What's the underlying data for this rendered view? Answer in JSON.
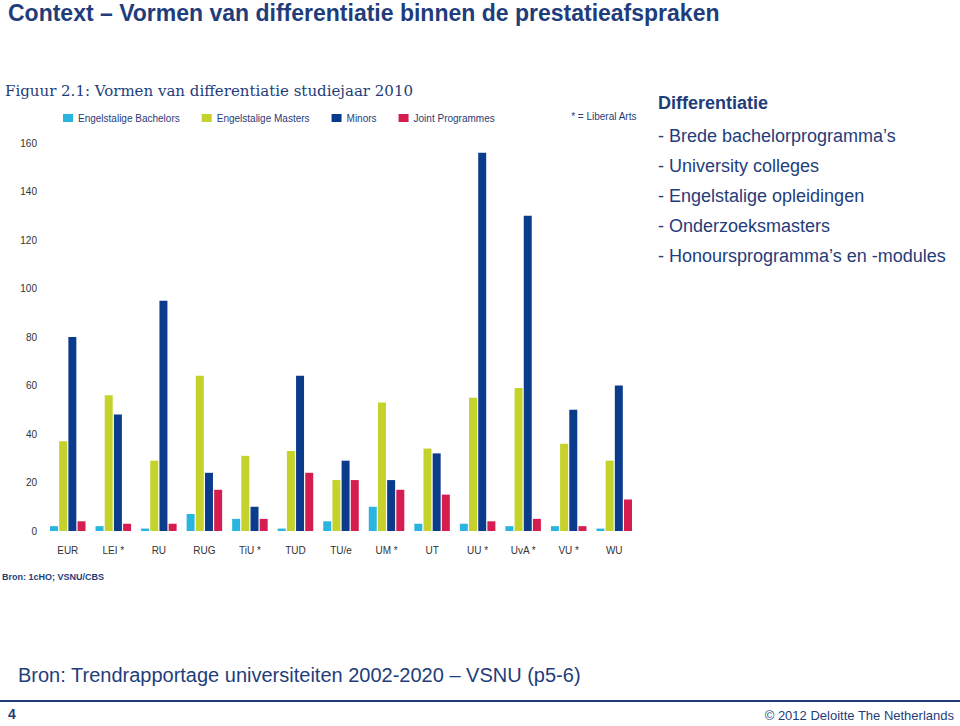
{
  "slide": {
    "title": "Context – Vormen van differentiatie binnen de prestatieafspraken",
    "heading": "Differentiatie",
    "bullets": [
      "- Brede bachelorprogramma’s",
      "- University colleges",
      "- Engelstalige opleidingen",
      "- Onderzoeksmasters",
      "- Honoursprogramma’s en -modules"
    ],
    "source": "Bron: Trendrapportage universiteiten 2002-2020 – VSNU (p5-6)",
    "page": "4",
    "copyright": "© 2012 Deloitte The Netherlands"
  },
  "chart_data": {
    "type": "bar",
    "title": "Figuur 2.1: Vormen van differentiatie studiejaar 2010",
    "annotations": [
      "* = Liberal Arts",
      "Bron: 1cHO; VSNU/CBS"
    ],
    "categories": [
      "EUR",
      "LEI *",
      "RU",
      "RUG",
      "TiU *",
      "TUD",
      "TU/e",
      "UM *",
      "UT",
      "UU *",
      "UvA *",
      "VU *",
      "WU"
    ],
    "series": [
      {
        "name": "Engelstalige Bachelors",
        "color": "#29b5e0",
        "values": [
          2,
          2,
          1,
          7,
          5,
          1,
          4,
          10,
          3,
          3,
          2,
          2,
          1
        ]
      },
      {
        "name": "Engelstalige Masters",
        "color": "#c4d22b",
        "values": [
          37,
          56,
          29,
          64,
          31,
          33,
          21,
          53,
          34,
          55,
          59,
          36,
          29
        ]
      },
      {
        "name": "Minors",
        "color": "#0b3c8c",
        "values": [
          80,
          48,
          95,
          24,
          10,
          64,
          29,
          21,
          32,
          156,
          130,
          50,
          60
        ]
      },
      {
        "name": "Joint Programmes",
        "color": "#d61d4f",
        "values": [
          4,
          3,
          3,
          17,
          5,
          24,
          21,
          17,
          15,
          4,
          5,
          2,
          13
        ]
      }
    ],
    "ylim": [
      0,
      160
    ],
    "yticks": [
      0,
      20,
      40,
      60,
      80,
      100,
      120,
      140,
      160
    ],
    "grid": false,
    "legend": "top"
  }
}
